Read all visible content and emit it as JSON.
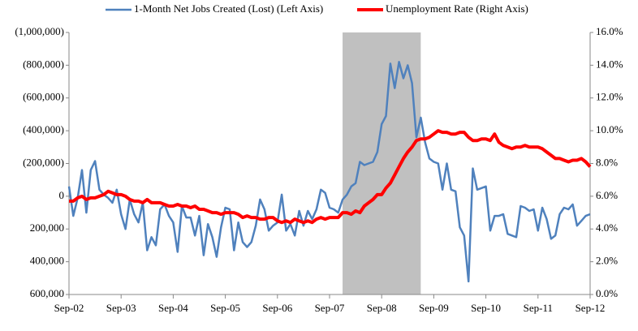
{
  "chart_data": {
    "type": "line",
    "categories": [
      "Sep-02",
      null,
      null,
      null,
      null,
      null,
      null,
      null,
      null,
      null,
      null,
      null,
      "Sep-03",
      null,
      null,
      null,
      null,
      null,
      null,
      null,
      null,
      null,
      null,
      null,
      "Sep-04",
      null,
      null,
      null,
      null,
      null,
      null,
      null,
      null,
      null,
      null,
      null,
      "Sep-05",
      null,
      null,
      null,
      null,
      null,
      null,
      null,
      null,
      null,
      null,
      null,
      "Sep-06",
      null,
      null,
      null,
      null,
      null,
      null,
      null,
      null,
      null,
      null,
      null,
      "Sep-07",
      null,
      null,
      null,
      null,
      null,
      null,
      null,
      null,
      null,
      null,
      null,
      "Sep-08",
      null,
      null,
      null,
      null,
      null,
      null,
      null,
      null,
      null,
      null,
      null,
      "Sep-09",
      null,
      null,
      null,
      null,
      null,
      null,
      null,
      null,
      null,
      null,
      null,
      "Sep-10",
      null,
      null,
      null,
      null,
      null,
      null,
      null,
      null,
      null,
      null,
      null,
      "Sep-11",
      null,
      null,
      null,
      null,
      null,
      null,
      null,
      null,
      null,
      null,
      null,
      "Sep-12"
    ],
    "series": [
      {
        "name": "1-Month Net Jobs Created (Lost) (Left Axis)",
        "color": "#4f81bd",
        "axis": "y",
        "values": [
          -60000,
          120000,
          10000,
          -160000,
          100000,
          -160000,
          -215000,
          -40000,
          -10000,
          10000,
          40000,
          -40000,
          110000,
          200000,
          20000,
          110000,
          160000,
          40000,
          330000,
          250000,
          300000,
          80000,
          50000,
          120000,
          160000,
          340000,
          60000,
          130000,
          130000,
          240000,
          120000,
          360000,
          170000,
          250000,
          370000,
          190000,
          70000,
          80000,
          330000,
          160000,
          280000,
          310000,
          280000,
          180000,
          20000,
          80000,
          210000,
          180000,
          160000,
          -10000,
          210000,
          170000,
          240000,
          90000,
          180000,
          90000,
          140000,
          80000,
          -40000,
          -20000,
          70000,
          80000,
          100000,
          20000,
          -10000,
          -60000,
          -80000,
          -210000,
          -190000,
          -200000,
          -210000,
          -270000,
          -440000,
          -490000,
          -810000,
          -660000,
          -820000,
          -720000,
          -800000,
          -690000,
          -360000,
          -480000,
          -330000,
          -230000,
          -210000,
          -200000,
          -40000,
          -200000,
          -40000,
          -30000,
          190000,
          240000,
          520000,
          -170000,
          -40000,
          -50000,
          -60000,
          210000,
          120000,
          120000,
          110000,
          230000,
          240000,
          250000,
          60000,
          70000,
          90000,
          80000,
          210000,
          70000,
          140000,
          260000,
          240000,
          110000,
          70000,
          80000,
          50000,
          180000,
          150000,
          120000,
          110000
        ]
      },
      {
        "name": "Unemployment Rate (Right Axis)",
        "color": "#ff0000",
        "axis": "y2",
        "values": [
          5.7,
          5.7,
          5.9,
          6.0,
          5.8,
          5.9,
          5.9,
          6.0,
          6.1,
          6.3,
          6.2,
          6.1,
          6.1,
          6.0,
          5.8,
          5.7,
          5.7,
          5.6,
          5.8,
          5.6,
          5.6,
          5.6,
          5.5,
          5.4,
          5.4,
          5.5,
          5.4,
          5.4,
          5.3,
          5.4,
          5.2,
          5.2,
          5.1,
          5.0,
          5.0,
          4.9,
          5.0,
          5.0,
          5.0,
          4.9,
          4.7,
          4.8,
          4.7,
          4.7,
          4.6,
          4.6,
          4.7,
          4.7,
          4.5,
          4.4,
          4.5,
          4.4,
          4.6,
          4.5,
          4.4,
          4.5,
          4.4,
          4.6,
          4.7,
          4.6,
          4.7,
          4.7,
          4.7,
          5.0,
          5.0,
          4.9,
          5.1,
          5.0,
          5.4,
          5.6,
          5.8,
          6.1,
          6.1,
          6.5,
          6.8,
          7.3,
          7.8,
          8.3,
          8.7,
          9.0,
          9.4,
          9.5,
          9.5,
          9.6,
          9.8,
          10.0,
          9.9,
          9.9,
          9.8,
          9.8,
          9.9,
          9.9,
          9.6,
          9.4,
          9.4,
          9.5,
          9.5,
          9.4,
          9.8,
          9.3,
          9.1,
          9.0,
          8.9,
          9.0,
          9.0,
          9.1,
          9.0,
          9.0,
          9.0,
          8.9,
          8.7,
          8.5,
          8.3,
          8.3,
          8.2,
          8.1,
          8.2,
          8.2,
          8.3,
          8.1,
          7.8
        ]
      }
    ],
    "ylim": [
      600000,
      -1000000
    ],
    "yticks": [
      {
        "value": 600000,
        "label": "600,000"
      },
      {
        "value": 400000,
        "label": "400,000"
      },
      {
        "value": 200000,
        "label": "200,000"
      },
      0,
      {
        "value": -200000,
        "label": "(200,000)"
      },
      {
        "value": -400000,
        "label": "(400,000)"
      },
      {
        "value": -600000,
        "label": "(600,000)"
      },
      {
        "value": -800000,
        "label": "(800,000)"
      },
      {
        "value": -1000000,
        "label": "(1,000,000)"
      }
    ],
    "y2lim": [
      0,
      16
    ],
    "y2ticks": [
      {
        "value": 0,
        "label": "0.0%"
      },
      {
        "value": 2,
        "label": "2.0%"
      },
      {
        "value": 4,
        "label": "4.0%"
      },
      {
        "value": 6,
        "label": "6.0%"
      },
      {
        "value": 8,
        "label": "8.0%"
      },
      {
        "value": 10,
        "label": "10.0%"
      },
      {
        "value": 12,
        "label": "12.0%"
      },
      {
        "value": 14,
        "label": "14.0%"
      },
      {
        "value": 16,
        "label": "16.0%"
      }
    ],
    "shade": {
      "from": 63,
      "to": 81,
      "color": "#c0c0c0"
    },
    "legend": "top"
  }
}
